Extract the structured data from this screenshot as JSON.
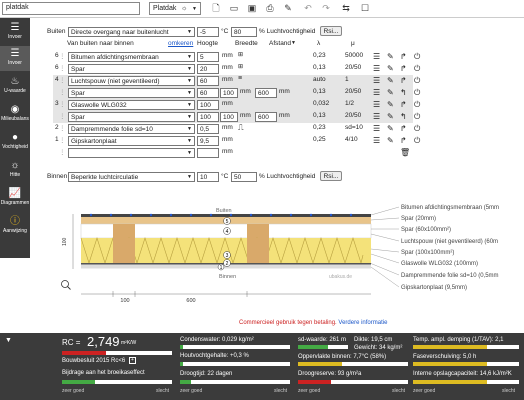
{
  "top": {
    "project_name": "platdak",
    "view_select": "Platdak",
    "sun_icon": "sun-icon"
  },
  "sidebar": {
    "items": [
      {
        "label": "Invoer",
        "icon": "layers-icon"
      },
      {
        "label": "Invoer",
        "icon": "layers-icon"
      },
      {
        "label": "U-waarde",
        "icon": "heat-icon"
      },
      {
        "label": "Milieubalans",
        "icon": "globe-icon"
      },
      {
        "label": "Vochtigheid",
        "icon": "drop-icon"
      },
      {
        "label": "Hitte",
        "icon": "sun-icon"
      },
      {
        "label": "Diagrammen",
        "icon": "chart-icon"
      },
      {
        "label": "Aanwijzing",
        "icon": "info-icon"
      }
    ]
  },
  "outside": {
    "label": "Buiten",
    "condition": "Directe overgang naar buitenlucht",
    "temp": "-5",
    "temp_unit": "°C",
    "humidity": "80",
    "humidity_unit": "% Luchtvochtigheid",
    "button": "Rsi..."
  },
  "header": {
    "direction": "Van buiten naar binnen",
    "reverse": "omkeren",
    "height": "Hoogte",
    "width": "Breedte",
    "spacing": "Afstand",
    "lambda": "λ",
    "mu": "μ"
  },
  "layers": [
    {
      "num": "6",
      "name": "Bitumen afdichtingsmembraan",
      "thickness": "5",
      "unit": "mm",
      "lambda": "0,23",
      "mu": "50000"
    },
    {
      "num": "6",
      "name": "Spar",
      "thickness": "20",
      "unit": "mm",
      "lambda": "0,13",
      "mu": "20/50"
    },
    {
      "num": "4",
      "name": "Luchtspouw (niet geventileerd)",
      "thickness": "60",
      "unit": "mm",
      "lambda": "auto",
      "mu": "1"
    },
    {
      "num": "",
      "name": "Spar",
      "thickness": "60",
      "w": "100",
      "unit": "mm",
      "a": "600",
      "unit2": "mm",
      "lambda": "0,13",
      "mu": "20/50"
    },
    {
      "num": "3",
      "name": "Glaswolle WLG032",
      "thickness": "100",
      "unit": "mm",
      "lambda": "0,032",
      "mu": "1/2"
    },
    {
      "num": "",
      "name": "Spar",
      "thickness": "100",
      "w": "100",
      "unit": "mm",
      "a": "600",
      "unit2": "mm",
      "lambda": "0,13",
      "mu": "20/50"
    },
    {
      "num": "2",
      "name": "Dampremmende folie sd=10",
      "thickness": "0,5",
      "unit": "mm",
      "lambda": "0,23",
      "mu": "sd=10"
    },
    {
      "num": "1",
      "name": "Gipskartonplaat",
      "thickness": "9,5",
      "unit": "mm",
      "lambda": "0,25",
      "mu": "4/10"
    },
    {
      "num": "",
      "name": "",
      "thickness": "",
      "unit": "mm",
      "lambda": "",
      "mu": ""
    }
  ],
  "inside": {
    "label": "Binnen",
    "condition": "Beperkte luchtcirculatie",
    "temp": "10",
    "temp_unit": "°C",
    "humidity": "50",
    "humidity_unit": "% Luchtvochtigheid",
    "button": "Rsi..."
  },
  "diagram": {
    "outside": "Buiten",
    "inside": "Binnen",
    "dim_100": "100",
    "dim_600": "600",
    "dim_left": "100",
    "watermark": "ubakus.de",
    "labels": [
      "Bitumen afdichtingsmembraan (5mm",
      "Spar (20mm)",
      "Spar (60x100mm²)",
      "Luchtspouw (niet geventileerd) (60m",
      "Spar (100x100mm²)",
      "Glaswolle WLG032 (100mm)",
      "Dampremmende folie sd=10 (0,5mm",
      "Gipskartonplaat (9,5mm)"
    ]
  },
  "footer_note": {
    "text": "Commercieel gebruik tegen betaling.",
    "link": "Verdere informatie"
  },
  "results": {
    "rc_label": "RC =",
    "rc_value": "2,749",
    "rc_unit": "m²K/W",
    "building_norm": "Bouwbesluit 2015 Rc<6",
    "add_label": "Bijdrage aan het broeikaseffect",
    "zeer_goed": "zeer goed",
    "slecht": "slecht",
    "condensate": "Condenswater: 0,029 kg/m²",
    "wood_moisture": "Houtvochtgehalte: +0,3 %",
    "dry_time": "Droogtijd: 22 dagen",
    "sd_value": "sd-waarde: 261 m",
    "thickness": "Dikte: 19,5 cm",
    "weight": "Gewicht: 34 kg/m²",
    "surface_temp": "Oppervlakte binnen: 7,7°C (58%)",
    "drying_reserve": "Droogreserve: 93 g/m²a",
    "temp_damping": "Temp. ampl. demping (1/TAV): 2,1",
    "phase_shift": "Faseverschuiving: 5,0 h",
    "heat_capacity": "Interne opslagcapaciteit: 14,6 kJ/m²K"
  },
  "colors": {
    "sidebar_bg": "#3a3a3a",
    "bottom_bg": "#3b3b3b",
    "link": "#1a56c8",
    "warn": "#cc2222"
  }
}
